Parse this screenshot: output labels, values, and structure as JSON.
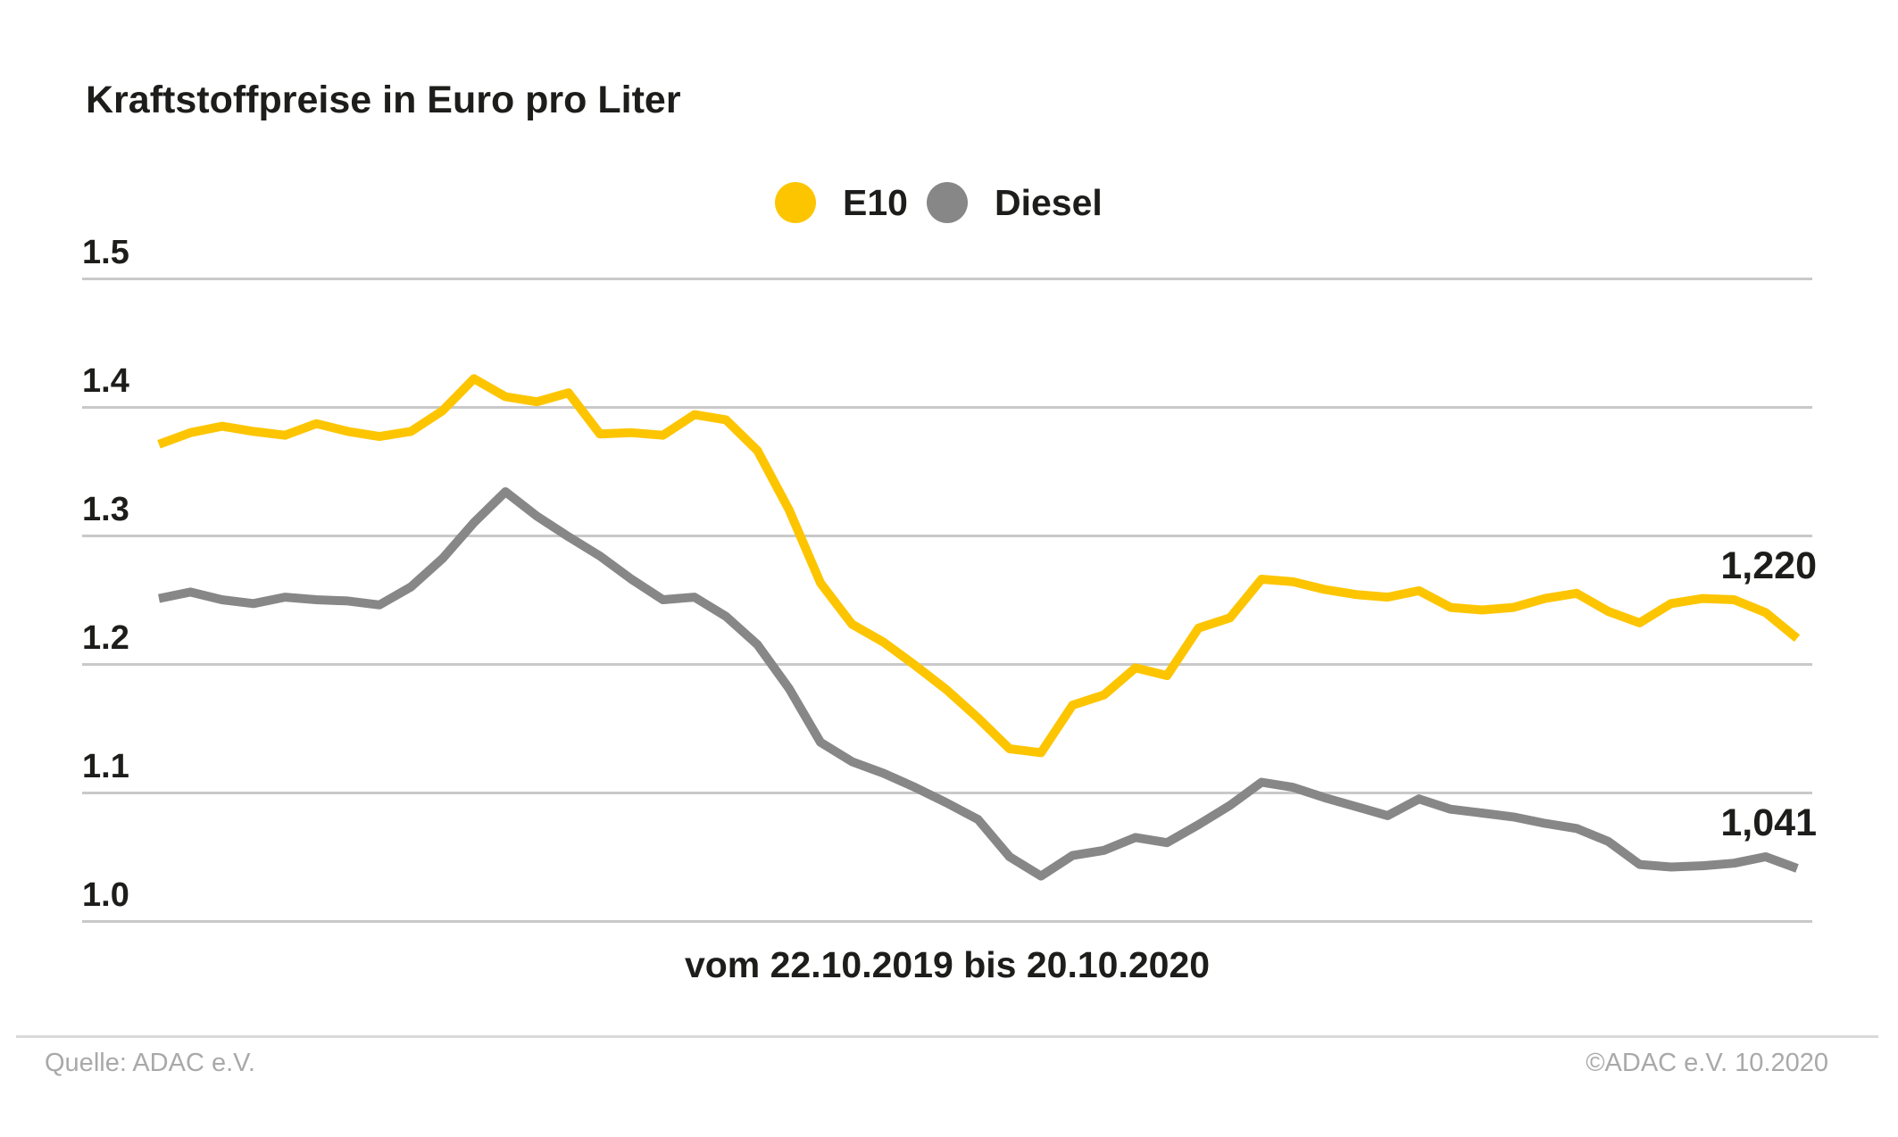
{
  "page": {
    "background": "#ffffff"
  },
  "chart_data": {
    "type": "line",
    "title": "Kraftstoffpreise in Euro pro Liter",
    "x_caption": "vom 22.10.2019 bis 20.10.2020",
    "x_start_date": "22.10.2019",
    "x_end_date": "20.10.2020",
    "x_unit": "week",
    "n_points": 53,
    "ylabel": "Euro pro Liter",
    "ylim": [
      1.0,
      1.5
    ],
    "y_tick_values": [
      1.5,
      1.4,
      1.3,
      1.2,
      1.1,
      1.0
    ],
    "y_tick_labels": [
      "1.5",
      "1.4",
      "1.3",
      "1.2",
      "1.1",
      "1.0"
    ],
    "grid": "horizontal",
    "legend_position": "top-center",
    "series": [
      {
        "name": "E10",
        "color": "#fdc500",
        "end_label": "1,220",
        "end_value": 1.22,
        "values": [
          1.371,
          1.38,
          1.385,
          1.381,
          1.378,
          1.387,
          1.381,
          1.377,
          1.381,
          1.397,
          1.422,
          1.408,
          1.404,
          1.411,
          1.379,
          1.38,
          1.378,
          1.394,
          1.39,
          1.366,
          1.32,
          1.263,
          1.231,
          1.217,
          1.199,
          1.18,
          1.158,
          1.134,
          1.131,
          1.168,
          1.176,
          1.197,
          1.191,
          1.228,
          1.236,
          1.266,
          1.264,
          1.258,
          1.254,
          1.252,
          1.257,
          1.244,
          1.242,
          1.244,
          1.251,
          1.255,
          1.241,
          1.232,
          1.247,
          1.251,
          1.25,
          1.24,
          1.22
        ]
      },
      {
        "name": "Diesel",
        "color": "#878787",
        "end_label": "1,041",
        "end_value": 1.041,
        "values": [
          1.251,
          1.256,
          1.25,
          1.247,
          1.252,
          1.25,
          1.249,
          1.246,
          1.26,
          1.282,
          1.31,
          1.334,
          1.315,
          1.299,
          1.284,
          1.266,
          1.25,
          1.252,
          1.237,
          1.215,
          1.181,
          1.139,
          1.124,
          1.115,
          1.104,
          1.092,
          1.079,
          1.05,
          1.035,
          1.051,
          1.055,
          1.065,
          1.061,
          1.075,
          1.09,
          1.108,
          1.104,
          1.096,
          1.089,
          1.082,
          1.095,
          1.087,
          1.084,
          1.081,
          1.076,
          1.072,
          1.062,
          1.044,
          1.042,
          1.043,
          1.045,
          1.05,
          1.041
        ]
      }
    ]
  },
  "colors": {
    "e10_line": "#fdc500",
    "diesel_line": "#878787",
    "gridline": "#c9c9c9",
    "text": "#1d1d1b",
    "footer_text": "#a9a9a9",
    "footer_rule": "#d9d9d9"
  },
  "footer": {
    "source": "Quelle: ADAC e.V.",
    "copyright": "©ADAC e.V. 10.2020"
  }
}
